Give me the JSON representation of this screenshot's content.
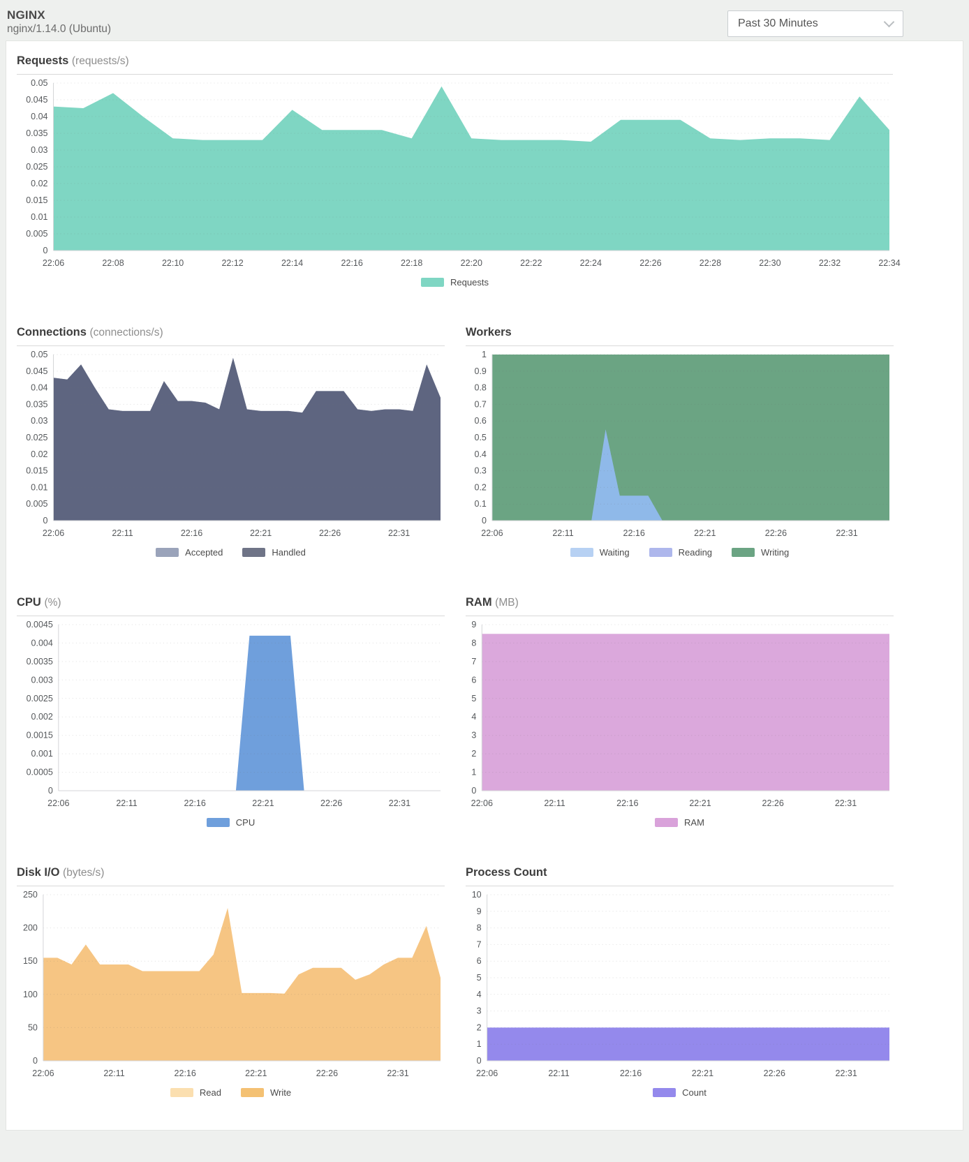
{
  "header": {
    "title": "NGINX",
    "subtitle": "nginx/1.14.0 (Ubuntu)",
    "time_range_selector": {
      "value": "Past 30 Minutes",
      "icon": "chevron-down"
    }
  },
  "chart_data": [
    {
      "id": "requests",
      "type": "area",
      "title": "Requests",
      "unit": "(requests/s)",
      "x": [
        "22:06",
        "22:07",
        "22:08",
        "22:09",
        "22:10",
        "22:11",
        "22:12",
        "22:13",
        "22:14",
        "22:15",
        "22:16",
        "22:17",
        "22:18",
        "22:19",
        "22:20",
        "22:21",
        "22:22",
        "22:23",
        "22:24",
        "22:25",
        "22:26",
        "22:27",
        "22:28",
        "22:29",
        "22:30",
        "22:31",
        "22:32",
        "22:33",
        "22:34"
      ],
      "x_tick_labels": [
        "22:06",
        "22:08",
        "22:10",
        "22:12",
        "22:14",
        "22:16",
        "22:18",
        "22:20",
        "22:22",
        "22:24",
        "22:26",
        "22:28",
        "22:30",
        "22:32",
        "22:34"
      ],
      "ylim": [
        0,
        0.05
      ],
      "ytick_step": 0.005,
      "grid": true,
      "legend_position": "bottom",
      "series": [
        {
          "name": "Requests",
          "color": "#7fd6c3",
          "values": [
            0.043,
            0.0425,
            0.047,
            0.04,
            0.0335,
            0.033,
            0.033,
            0.033,
            0.042,
            0.036,
            0.036,
            0.036,
            0.0335,
            0.049,
            0.0335,
            0.033,
            0.033,
            0.033,
            0.0325,
            0.039,
            0.039,
            0.039,
            0.0335,
            0.033,
            0.0335,
            0.0335,
            0.033,
            0.046,
            0.036
          ]
        }
      ]
    },
    {
      "id": "connections",
      "type": "area",
      "title": "Connections",
      "unit": "(connections/s)",
      "x": [
        "22:06",
        "22:07",
        "22:08",
        "22:09",
        "22:10",
        "22:11",
        "22:12",
        "22:13",
        "22:14",
        "22:15",
        "22:16",
        "22:17",
        "22:18",
        "22:19",
        "22:20",
        "22:21",
        "22:22",
        "22:23",
        "22:24",
        "22:25",
        "22:26",
        "22:27",
        "22:28",
        "22:29",
        "22:30",
        "22:31",
        "22:32",
        "22:33",
        "22:34"
      ],
      "x_tick_labels": [
        "22:06",
        "22:11",
        "22:16",
        "22:21",
        "22:26",
        "22:31"
      ],
      "ylim": [
        0,
        0.05
      ],
      "ytick_step": 0.005,
      "grid": true,
      "legend_position": "bottom",
      "series": [
        {
          "name": "Accepted",
          "color": "#9aa3ba",
          "values": [
            0.043,
            0.0425,
            0.047,
            0.04,
            0.0335,
            0.033,
            0.033,
            0.033,
            0.042,
            0.036,
            0.036,
            0.0355,
            0.0335,
            0.049,
            0.0335,
            0.033,
            0.033,
            0.033,
            0.0325,
            0.039,
            0.039,
            0.039,
            0.0335,
            0.033,
            0.0335,
            0.0335,
            0.033,
            0.047,
            0.037
          ]
        },
        {
          "name": "Handled",
          "color": "#5e6580",
          "legend_color": "#6f7487",
          "values": [
            0.043,
            0.0425,
            0.047,
            0.04,
            0.0335,
            0.033,
            0.033,
            0.033,
            0.042,
            0.036,
            0.036,
            0.0355,
            0.0335,
            0.049,
            0.0335,
            0.033,
            0.033,
            0.033,
            0.0325,
            0.039,
            0.039,
            0.039,
            0.0335,
            0.033,
            0.0335,
            0.0335,
            0.033,
            0.047,
            0.037
          ]
        }
      ]
    },
    {
      "id": "workers",
      "type": "area",
      "title": "Workers",
      "unit": "",
      "x": [
        "22:06",
        "22:07",
        "22:08",
        "22:09",
        "22:10",
        "22:11",
        "22:12",
        "22:13",
        "22:14",
        "22:15",
        "22:16",
        "22:17",
        "22:18",
        "22:19",
        "22:20",
        "22:21",
        "22:22",
        "22:23",
        "22:24",
        "22:25",
        "22:26",
        "22:27",
        "22:28",
        "22:29",
        "22:30",
        "22:31",
        "22:32",
        "22:33",
        "22:34"
      ],
      "x_tick_labels": [
        "22:06",
        "22:11",
        "22:16",
        "22:21",
        "22:26",
        "22:31"
      ],
      "ylim": [
        0,
        1
      ],
      "ytick_step": 0.1,
      "grid": true,
      "legend_position": "bottom",
      "draw_order": [
        2,
        1,
        0
      ],
      "series": [
        {
          "name": "Waiting",
          "color": "#8fb9e9",
          "legend_color": "#b7d1f3",
          "values": [
            0,
            0,
            0,
            0,
            0,
            0,
            0,
            0,
            0.55,
            0.15,
            0.15,
            0.15,
            0,
            0,
            0,
            0,
            0,
            0,
            0,
            0,
            0,
            0,
            0,
            0,
            0,
            0,
            0,
            0,
            0
          ]
        },
        {
          "name": "Reading",
          "color": "#aeb7ec",
          "values": [
            0,
            0,
            0,
            0,
            0,
            0,
            0,
            0,
            0,
            0,
            0,
            0,
            0,
            0,
            0,
            0,
            0,
            0,
            0,
            0,
            0,
            0,
            0,
            0,
            0,
            0,
            0,
            0,
            0
          ]
        },
        {
          "name": "Writing",
          "color": "#6ba483",
          "values": [
            1,
            1,
            1,
            1,
            1,
            1,
            1,
            1,
            1,
            1,
            1,
            1,
            1,
            1,
            1,
            1,
            1,
            1,
            1,
            1,
            1,
            1,
            1,
            1,
            1,
            1,
            1,
            1,
            1
          ]
        }
      ]
    },
    {
      "id": "cpu",
      "type": "area",
      "title": "CPU",
      "unit": "(%)",
      "x": [
        "22:06",
        "22:07",
        "22:08",
        "22:09",
        "22:10",
        "22:11",
        "22:12",
        "22:13",
        "22:14",
        "22:15",
        "22:16",
        "22:17",
        "22:18",
        "22:19",
        "22:20",
        "22:21",
        "22:22",
        "22:23",
        "22:24",
        "22:25",
        "22:26",
        "22:27",
        "22:28",
        "22:29",
        "22:30",
        "22:31",
        "22:32",
        "22:33",
        "22:34"
      ],
      "x_tick_labels": [
        "22:06",
        "22:11",
        "22:16",
        "22:21",
        "22:26",
        "22:31"
      ],
      "ylim": [
        0,
        0.0045
      ],
      "ytick_step": 0.0005,
      "grid": true,
      "legend_position": "bottom",
      "series": [
        {
          "name": "CPU",
          "color": "#6f9fdc",
          "values": [
            0,
            0,
            0,
            0,
            0,
            0,
            0,
            0,
            0,
            0,
            0,
            0,
            0,
            0,
            0.0042,
            0.0042,
            0.0042,
            0.0042,
            0,
            0,
            0,
            0,
            0,
            0,
            0,
            0,
            0,
            0,
            0
          ]
        }
      ]
    },
    {
      "id": "ram",
      "type": "area",
      "title": "RAM",
      "unit": "(MB)",
      "x": [
        "22:06",
        "22:07",
        "22:08",
        "22:09",
        "22:10",
        "22:11",
        "22:12",
        "22:13",
        "22:14",
        "22:15",
        "22:16",
        "22:17",
        "22:18",
        "22:19",
        "22:20",
        "22:21",
        "22:22",
        "22:23",
        "22:24",
        "22:25",
        "22:26",
        "22:27",
        "22:28",
        "22:29",
        "22:30",
        "22:31",
        "22:32",
        "22:33",
        "22:34"
      ],
      "x_tick_labels": [
        "22:06",
        "22:11",
        "22:16",
        "22:21",
        "22:26",
        "22:31"
      ],
      "ylim": [
        0,
        9
      ],
      "ytick_step": 1,
      "grid": true,
      "legend_position": "bottom",
      "series": [
        {
          "name": "RAM",
          "color": "#dba8dc",
          "legend_color": "#d9a2da",
          "values": [
            8.5,
            8.5,
            8.5,
            8.5,
            8.5,
            8.5,
            8.5,
            8.5,
            8.5,
            8.5,
            8.5,
            8.5,
            8.5,
            8.5,
            8.5,
            8.5,
            8.5,
            8.5,
            8.5,
            8.5,
            8.5,
            8.5,
            8.5,
            8.5,
            8.5,
            8.5,
            8.5,
            8.5,
            8.5
          ]
        }
      ]
    },
    {
      "id": "disk-io",
      "type": "area",
      "title": "Disk I/O",
      "unit": "(bytes/s)",
      "x": [
        "22:06",
        "22:07",
        "22:08",
        "22:09",
        "22:10",
        "22:11",
        "22:12",
        "22:13",
        "22:14",
        "22:15",
        "22:16",
        "22:17",
        "22:18",
        "22:19",
        "22:20",
        "22:21",
        "22:22",
        "22:23",
        "22:24",
        "22:25",
        "22:26",
        "22:27",
        "22:28",
        "22:29",
        "22:30",
        "22:31",
        "22:32",
        "22:33",
        "22:34"
      ],
      "x_tick_labels": [
        "22:06",
        "22:11",
        "22:16",
        "22:21",
        "22:26",
        "22:31"
      ],
      "ylim": [
        0,
        250
      ],
      "ytick_step": 50,
      "grid": true,
      "legend_position": "bottom",
      "series": [
        {
          "name": "Read",
          "color": "#fbdfb0",
          "values": [
            0,
            0,
            0,
            0,
            0,
            0,
            0,
            0,
            0,
            0,
            0,
            0,
            0,
            0,
            0,
            0,
            0,
            0,
            0,
            0,
            0,
            0,
            0,
            0,
            0,
            0,
            0,
            0,
            0
          ]
        },
        {
          "name": "Write",
          "color": "#f6c583",
          "legend_color": "#f4c173",
          "values": [
            155,
            155,
            145,
            175,
            145,
            145,
            145,
            135,
            135,
            135,
            135,
            135,
            160,
            230,
            102,
            102,
            102,
            101,
            130,
            140,
            140,
            140,
            122,
            130,
            145,
            155,
            155,
            203,
            125
          ]
        }
      ]
    },
    {
      "id": "process-count",
      "type": "area",
      "title": "Process Count",
      "unit": "",
      "x": [
        "22:06",
        "22:07",
        "22:08",
        "22:09",
        "22:10",
        "22:11",
        "22:12",
        "22:13",
        "22:14",
        "22:15",
        "22:16",
        "22:17",
        "22:18",
        "22:19",
        "22:20",
        "22:21",
        "22:22",
        "22:23",
        "22:24",
        "22:25",
        "22:26",
        "22:27",
        "22:28",
        "22:29",
        "22:30",
        "22:31",
        "22:32",
        "22:33",
        "22:34"
      ],
      "x_tick_labels": [
        "22:06",
        "22:11",
        "22:16",
        "22:21",
        "22:26",
        "22:31"
      ],
      "ylim": [
        0,
        10
      ],
      "ytick_step": 1,
      "grid": true,
      "legend_position": "bottom",
      "series": [
        {
          "name": "Count",
          "color": "#9489ec",
          "values": [
            2,
            2,
            2,
            2,
            2,
            2,
            2,
            2,
            2,
            2,
            2,
            2,
            2,
            2,
            2,
            2,
            2,
            2,
            2,
            2,
            2,
            2,
            2,
            2,
            2,
            2,
            2,
            2,
            2
          ]
        }
      ]
    }
  ]
}
